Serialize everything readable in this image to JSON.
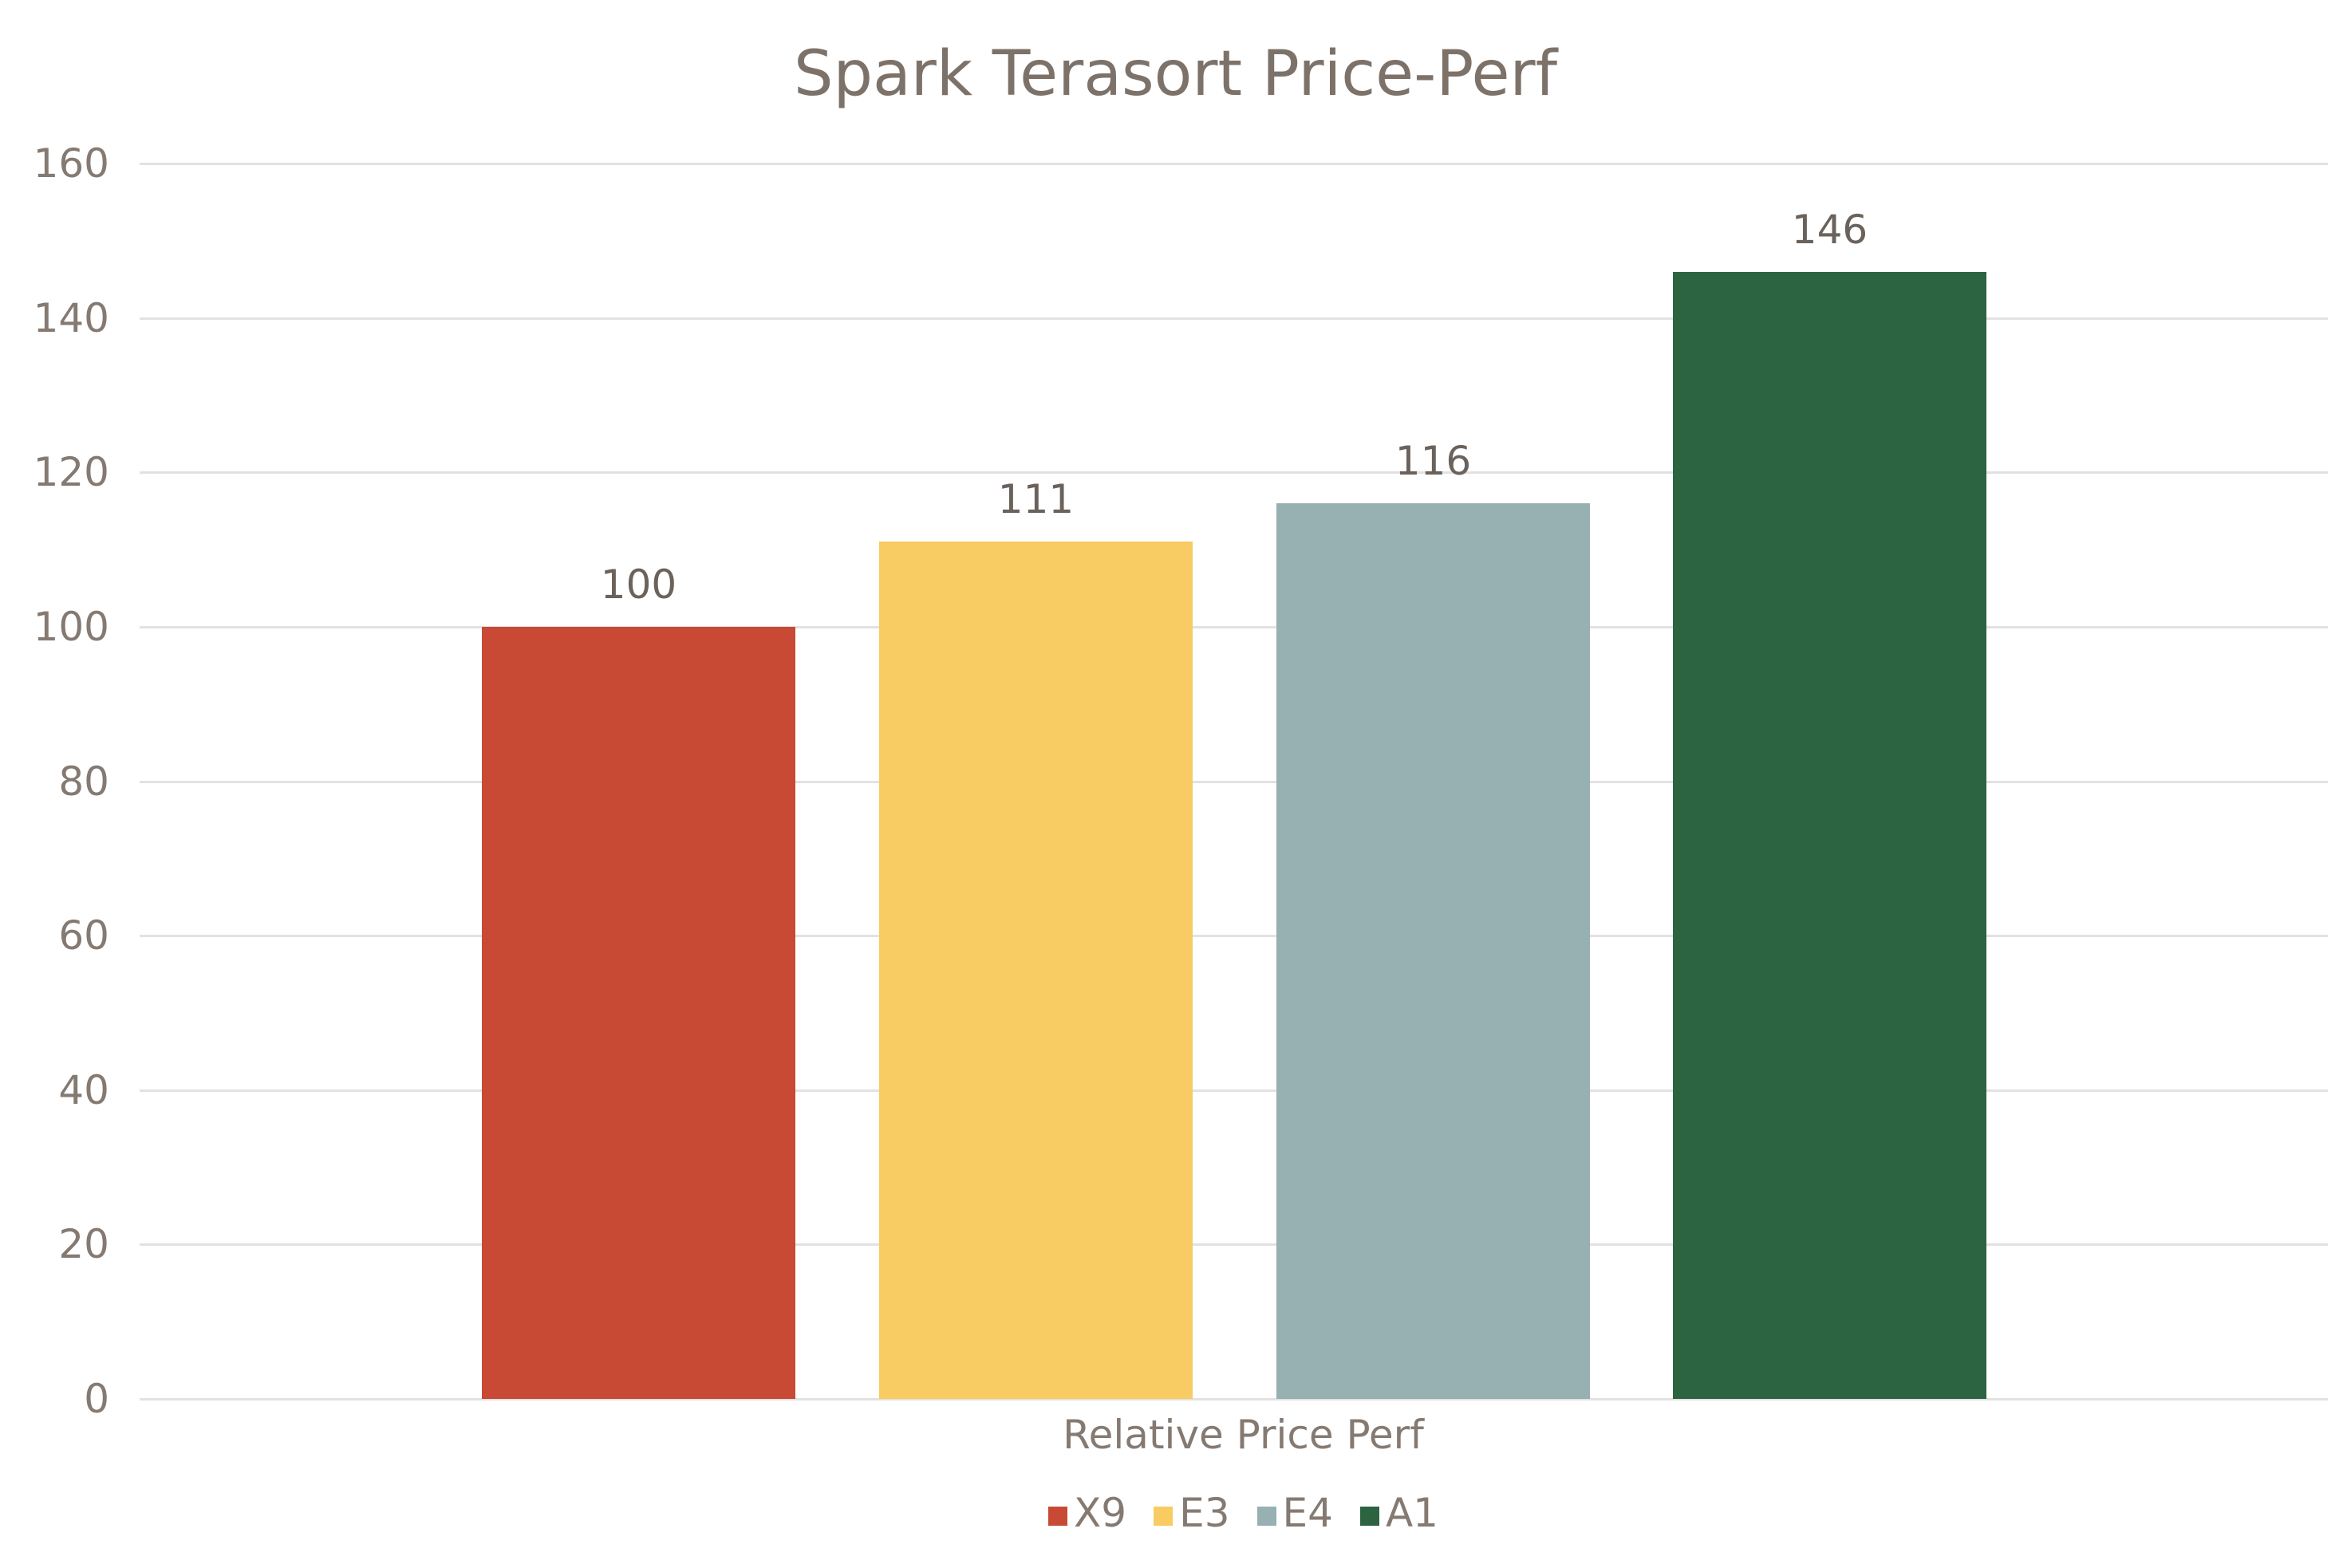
{
  "chart_data": {
    "type": "bar",
    "title": "Spark Terasort Price-Perf",
    "xlabel": "Relative Price Perf",
    "ylabel": "",
    "categories": [
      "Relative Price Perf"
    ],
    "series": [
      {
        "name": "X9",
        "values": [
          100
        ],
        "color": "#c84934"
      },
      {
        "name": "E3",
        "values": [
          111
        ],
        "color": "#f8cb63"
      },
      {
        "name": "E4",
        "values": [
          116
        ],
        "color": "#97b0b1"
      },
      {
        "name": "A1",
        "values": [
          146
        ],
        "color": "#2c6442"
      }
    ],
    "ylim": [
      0,
      160
    ],
    "yticks": [
      0,
      20,
      40,
      60,
      80,
      100,
      120,
      140,
      160
    ],
    "grid": true,
    "legend_position": "bottom",
    "data_labels": true
  },
  "labels": {
    "title": "Spark Terasort Price-Perf",
    "xlabel": "Relative Price Perf",
    "yticks": [
      "0",
      "20",
      "40",
      "60",
      "80",
      "100",
      "120",
      "140",
      "160"
    ],
    "data": [
      "100",
      "111",
      "116",
      "146"
    ],
    "legend": [
      "X9",
      "E3",
      "E4",
      "A1"
    ]
  }
}
